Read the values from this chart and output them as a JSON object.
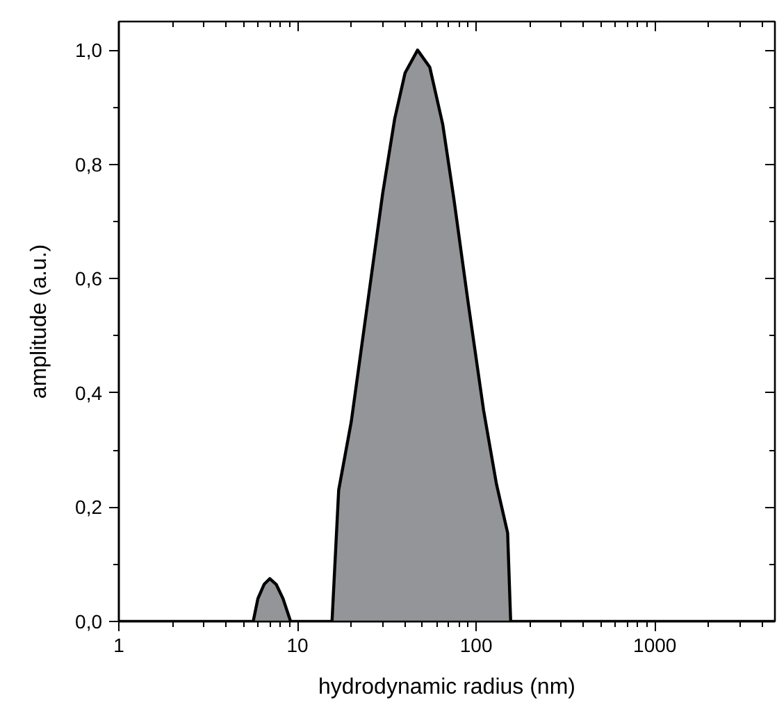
{
  "chart_data": {
    "type": "area",
    "xlabel": "hydrodynamic radius (nm)",
    "ylabel": "amplitude (a.u.)",
    "log": "x",
    "xlim": [
      1,
      4700
    ],
    "xticks": [
      1,
      10,
      100,
      1000
    ],
    "ylim": [
      0,
      1.05
    ],
    "yticks": [
      {
        "value": 0,
        "label": "0,0"
      },
      {
        "value": 0.2,
        "label": "0,2"
      },
      {
        "value": 0.4,
        "label": "0,4"
      },
      {
        "value": 0.6,
        "label": "0,6"
      },
      {
        "value": 0.8,
        "label": "0,8"
      },
      {
        "value": 1.0,
        "label": "1,0"
      }
    ],
    "grid": false,
    "x": [
      1,
      5.65,
      6,
      6.5,
      7,
      7.6,
      8.3,
      9.15,
      15.6,
      17,
      20,
      25,
      30,
      35,
      40,
      47,
      55,
      65,
      75,
      90,
      110,
      130,
      150,
      156,
      4700
    ],
    "series": [
      {
        "color": "#939598",
        "values": [
          0,
          0,
          0.04,
          0.065,
          0.075,
          0.065,
          0.04,
          0,
          0,
          0.23,
          0.35,
          0.57,
          0.75,
          0.88,
          0.96,
          1.0,
          0.97,
          0.87,
          0.74,
          0.56,
          0.37,
          0.24,
          0.155,
          0,
          0
        ]
      }
    ]
  }
}
